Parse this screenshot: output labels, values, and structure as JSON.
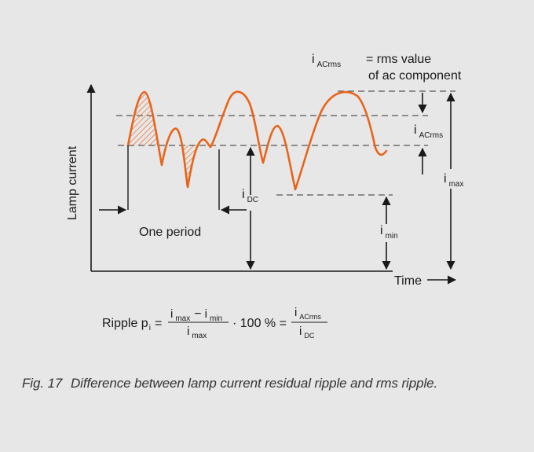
{
  "diagram": {
    "ylabel": "Lamp current",
    "xlabel": "Time",
    "one_period": "One period",
    "iac_rms_def_line1": "= rms value",
    "iac_rms_def_line2": "of ac component",
    "sym_i": "i",
    "sub_ac_rms": "AC",
    "sub_rms": "rms",
    "sub_dc": "DC",
    "sub_max": "max",
    "sub_min": "min"
  },
  "formula": {
    "ripple_label": "Ripple p",
    "ripple_sub": "i",
    "equals": "=",
    "minus": "−",
    "multiply": "· 100 % ="
  },
  "caption": {
    "number": "Fig. 17",
    "text": "Difference between lamp current residual ripple and rms ripple."
  },
  "colors": {
    "waveform": "#e8641b",
    "lines": "#1a1a1a",
    "dashed": "#555555",
    "background": "#e7e7e7"
  }
}
